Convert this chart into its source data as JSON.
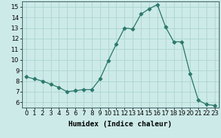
{
  "x": [
    0,
    1,
    2,
    3,
    4,
    5,
    6,
    7,
    8,
    9,
    10,
    11,
    12,
    13,
    14,
    15,
    16,
    17,
    18,
    19,
    20,
    21,
    22,
    23
  ],
  "y": [
    8.4,
    8.2,
    8.0,
    7.7,
    7.4,
    7.0,
    7.1,
    7.2,
    7.2,
    8.2,
    9.9,
    11.5,
    13.0,
    12.9,
    14.3,
    14.8,
    15.2,
    13.1,
    11.7,
    11.7,
    8.7,
    6.2,
    5.8,
    5.7
  ],
  "line_color": "#2d7a6e",
  "marker": "D",
  "marker_size": 2.5,
  "bg_color": "#cceae8",
  "grid_color": "#aad4d0",
  "xlabel": "Humidex (Indice chaleur)",
  "xlim": [
    -0.5,
    23.5
  ],
  "ylim": [
    5.5,
    15.5
  ],
  "yticks": [
    6,
    7,
    8,
    9,
    10,
    11,
    12,
    13,
    14,
    15
  ],
  "xticks": [
    0,
    1,
    2,
    3,
    4,
    5,
    6,
    7,
    8,
    9,
    10,
    11,
    12,
    13,
    14,
    15,
    16,
    17,
    18,
    19,
    20,
    21,
    22,
    23
  ],
  "tick_fontsize": 6.5,
  "xlabel_fontsize": 7.5,
  "line_width": 1.0
}
